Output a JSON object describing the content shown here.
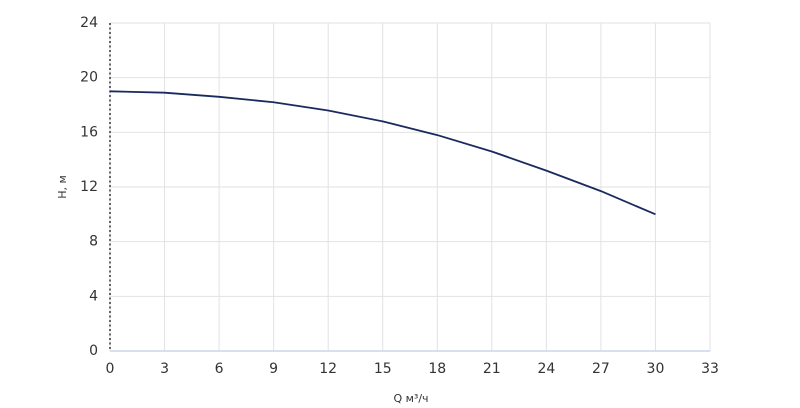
{
  "chart_data": {
    "type": "line",
    "x_label": "Q м³/ч",
    "y_label": "H, м",
    "x": [
      0,
      3,
      6,
      9,
      12,
      15,
      18,
      21,
      24,
      27,
      30
    ],
    "series": [
      {
        "name": "H",
        "color": "#1b2a5e",
        "values": [
          19.0,
          18.9,
          18.6,
          18.2,
          17.6,
          16.8,
          15.8,
          14.6,
          13.2,
          11.7,
          10.0
        ]
      }
    ],
    "xlim": [
      0,
      33
    ],
    "xticks": [
      0,
      3,
      6,
      9,
      12,
      15,
      18,
      21,
      24,
      27,
      30,
      33
    ],
    "ylim": [
      0,
      24
    ],
    "yticks": [
      0,
      4,
      8,
      12,
      16,
      20,
      24
    ],
    "grid": true
  }
}
